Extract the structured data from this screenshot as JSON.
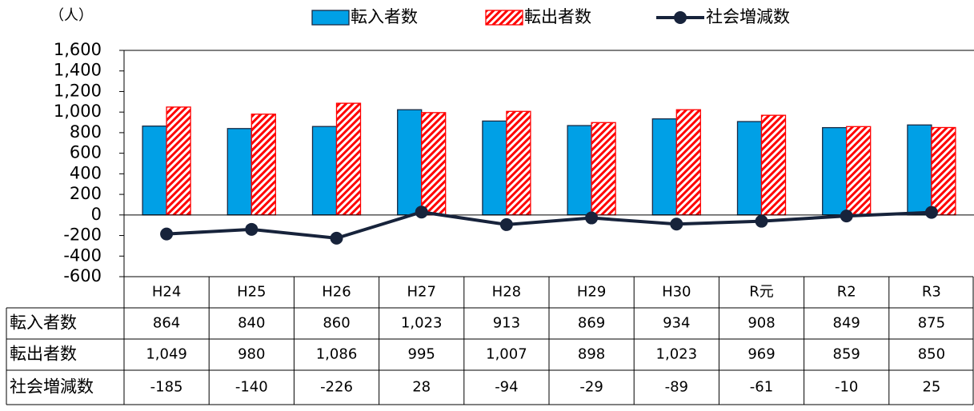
{
  "chart_data": {
    "type": "bar",
    "y_label": "（人）",
    "categories": [
      "H24",
      "H25",
      "H26",
      "H27",
      "H28",
      "H29",
      "H30",
      "R元",
      "R2",
      "R3"
    ],
    "series": [
      {
        "name": "転入者数",
        "type": "bar",
        "color": "#00a0e6",
        "values": [
          864,
          840,
          860,
          1023,
          913,
          869,
          934,
          908,
          849,
          875
        ],
        "value_labels": [
          "864",
          "840",
          "860",
          "1,023",
          "913",
          "869",
          "934",
          "908",
          "849",
          "875"
        ]
      },
      {
        "name": "転出者数",
        "type": "bar",
        "color": "#ff0000",
        "hatch": true,
        "values": [
          1049,
          980,
          1086,
          995,
          1007,
          898,
          1023,
          969,
          859,
          850
        ],
        "value_labels": [
          "1,049",
          "980",
          "1,086",
          "995",
          "1,007",
          "898",
          "1,023",
          "969",
          "859",
          "850"
        ]
      },
      {
        "name": "社会増減数",
        "type": "line",
        "color": "#17233b",
        "values": [
          -185,
          -140,
          -226,
          28,
          -94,
          -29,
          -89,
          -61,
          -10,
          25
        ],
        "value_labels": [
          "-185",
          "-140",
          "-226",
          "28",
          "-94",
          "-29",
          "-89",
          "-61",
          "-10",
          "25"
        ]
      }
    ],
    "ylim": [
      -600,
      1600
    ],
    "yticks": [
      -600,
      -400,
      -200,
      0,
      200,
      400,
      600,
      800,
      {
        "value": 1000,
        "label": "1,000"
      },
      {
        "value": 1200,
        "label": "1,200"
      },
      {
        "value": 1400,
        "label": "1,400"
      },
      {
        "value": 1600,
        "label": "1,600"
      }
    ]
  }
}
